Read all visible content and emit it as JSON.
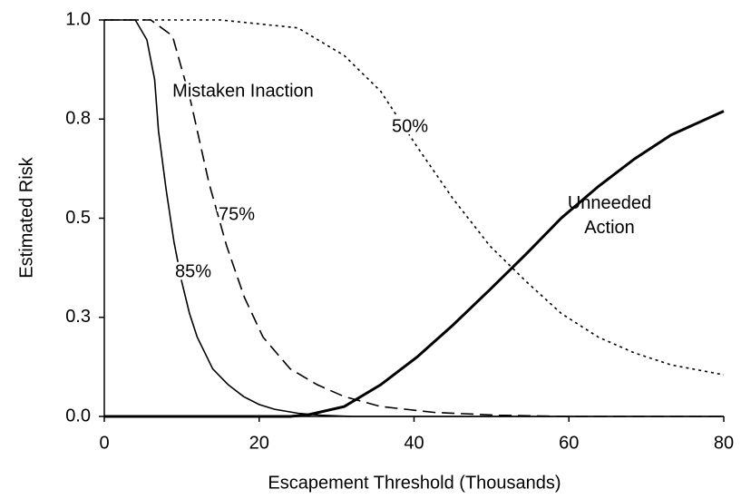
{
  "chart_data": {
    "type": "line",
    "x_label": "Escapement Threshold (Thousands)",
    "y_label": "Estimated Risk",
    "xlim": [
      0,
      80
    ],
    "xticks": [
      0,
      20,
      40,
      60,
      80
    ],
    "ylim": [
      0,
      1
    ],
    "yticks": [
      {
        "value": 0,
        "label": "0.0"
      },
      {
        "value": 0.25,
        "label": "0.3"
      },
      {
        "value": 0.5,
        "label": "0.5"
      },
      {
        "value": 0.75,
        "label": "0.8"
      },
      {
        "value": 1,
        "label": "1.0"
      }
    ],
    "annotations": [
      {
        "text": "Mistaken Inaction"
      }
    ],
    "series": [
      {
        "name": "85%",
        "color": "#000000",
        "line_style": "solid",
        "line_width": 1.6,
        "x": [
          0,
          4,
          5.5,
          6.5,
          7,
          8,
          9,
          10,
          11,
          12,
          13,
          14,
          15,
          16,
          18,
          20,
          22,
          25,
          28,
          32,
          80
        ],
        "values": [
          1,
          1,
          0.95,
          0.85,
          0.72,
          0.57,
          0.44,
          0.34,
          0.26,
          0.2,
          0.16,
          0.12,
          0.1,
          0.08,
          0.05,
          0.03,
          0.018,
          0.008,
          0.003,
          0,
          0
        ]
      },
      {
        "name": "75%",
        "color": "#000000",
        "line_style": "dashed",
        "line_width": 1.6,
        "x": [
          0,
          6,
          8.8,
          11.1,
          13.5,
          15.8,
          18.1,
          20.5,
          24,
          27.5,
          31,
          35.7,
          42.7,
          51,
          60,
          80
        ],
        "values": [
          1,
          1,
          0.96,
          0.8,
          0.59,
          0.43,
          0.3,
          0.2,
          0.12,
          0.08,
          0.05,
          0.025,
          0.01,
          0.003,
          0,
          0
        ]
      },
      {
        "name": "50%",
        "color": "#000000",
        "line_style": "dotted",
        "line_width": 1.6,
        "x": [
          0,
          15,
          25,
          31,
          35.7,
          40.4,
          45,
          49.8,
          54.5,
          59,
          63.8,
          68.5,
          73.2,
          80
        ],
        "values": [
          1,
          1,
          0.98,
          0.91,
          0.82,
          0.68,
          0.55,
          0.43,
          0.34,
          0.26,
          0.2,
          0.16,
          0.13,
          0.105
        ]
      },
      {
        "name": "Unneeded Action",
        "color": "#000000",
        "line_style": "solid",
        "line_width": 3,
        "x": [
          0,
          24,
          26.3,
          31,
          35.7,
          40.4,
          45,
          49.8,
          54.5,
          59,
          63.8,
          68.5,
          73.2,
          80
        ],
        "values": [
          0,
          0,
          0.004,
          0.025,
          0.08,
          0.15,
          0.23,
          0.32,
          0.41,
          0.5,
          0.58,
          0.65,
          0.71,
          0.77
        ]
      }
    ]
  }
}
